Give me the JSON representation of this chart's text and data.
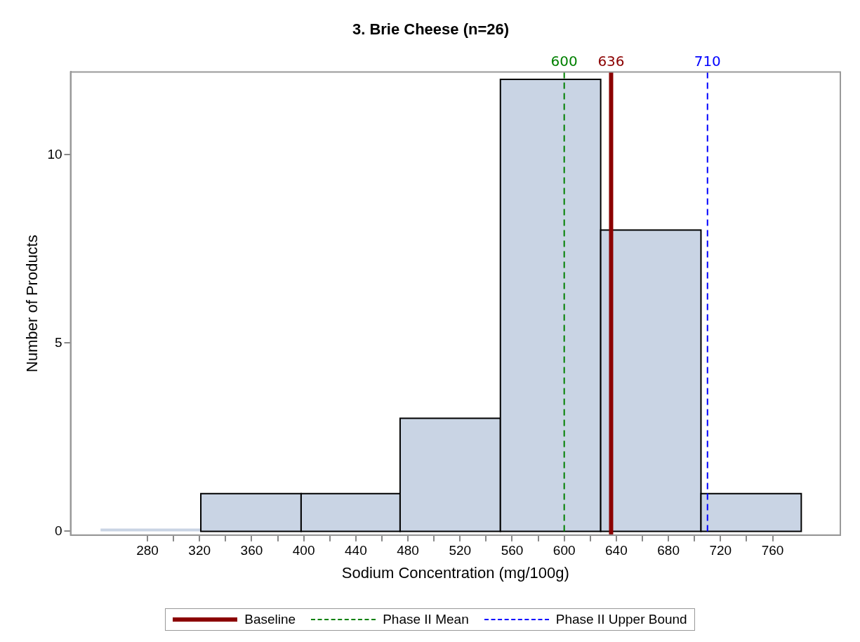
{
  "chart_data": {
    "type": "histogram",
    "title": "3. Brie Cheese (n=26)",
    "xlabel": "Sodium Concentration (mg/100g)",
    "ylabel": "Number of Products",
    "bins": [
      244,
      321,
      398,
      474,
      551,
      628,
      705,
      782
    ],
    "values": [
      0,
      1,
      1,
      3,
      12,
      8,
      1
    ],
    "color": "#c9d4e4",
    "xlim": [
      221,
      812
    ],
    "xticks": [
      280,
      {
        "value": 300,
        "label": null
      },
      320,
      {
        "value": 340,
        "label": null
      },
      360,
      {
        "value": 380,
        "label": null
      },
      400,
      {
        "value": 420,
        "label": null
      },
      440,
      {
        "value": 460,
        "label": null
      },
      480,
      {
        "value": 500,
        "label": null
      },
      520,
      {
        "value": 540,
        "label": null
      },
      560,
      {
        "value": 580,
        "label": null
      },
      600,
      {
        "value": 620,
        "label": null
      },
      640,
      {
        "value": 660,
        "label": null
      },
      680,
      {
        "value": 700,
        "label": null
      },
      720,
      {
        "value": 740,
        "label": null
      },
      760
    ],
    "ylim": [
      -0.1,
      12.2
    ],
    "yticks": [
      0,
      5,
      10
    ],
    "ref_lines": [
      {
        "axis": "x",
        "value": 636,
        "label": "Baseline",
        "color": "#8b0000",
        "line_style": "solid"
      },
      {
        "axis": "x",
        "value": 600,
        "label": "Phase II Mean",
        "color": "#008000",
        "line_style": "dashed"
      },
      {
        "axis": "x",
        "value": 710,
        "label": "Phase II Upper Bound",
        "color": "#0000ff",
        "line_style": "dashed"
      }
    ],
    "annotations": [
      {
        "text": "600",
        "x": 600,
        "y": 12.2
      },
      {
        "text": "636",
        "x": 636,
        "y": 12.2
      },
      {
        "text": "710",
        "x": 710,
        "y": 12.2
      }
    ],
    "legend": "bottom",
    "grid": false
  }
}
